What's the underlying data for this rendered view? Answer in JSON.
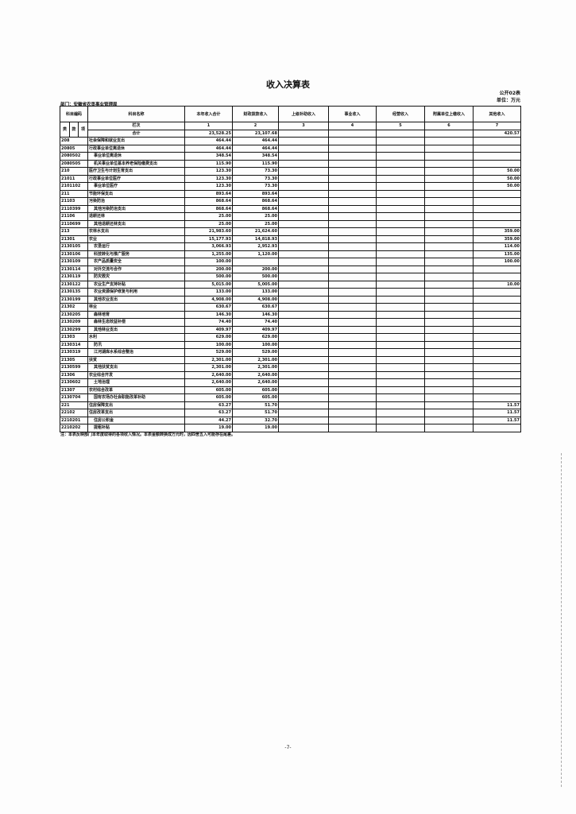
{
  "title": "收入决算表",
  "form_no": "公开02表",
  "unit": "单位：万元",
  "department": "部门：安徽省农垦事业管理局",
  "headers": {
    "code": "科目编码",
    "name": "科目名称",
    "cols": [
      "本年收入合计",
      "财政拨款收入",
      "上级补助收入",
      "事业收入",
      "经营收入",
      "附属单位上缴收入",
      "其他收入"
    ]
  },
  "sub_headers": {
    "lei": "类",
    "kuan": "款",
    "xiang": "项",
    "lanci": "栏次",
    "col_nums": [
      "1",
      "2",
      "3",
      "4",
      "5",
      "6",
      "7"
    ]
  },
  "total": {
    "label": "合计",
    "values": [
      "23,528.25",
      "23,107.68",
      "",
      "",
      "",
      "",
      "420.57"
    ]
  },
  "rows": [
    {
      "code": "208",
      "name": "社会保障和就业支出",
      "v": [
        "464.44",
        "464.44",
        "",
        "",
        "",
        "",
        ""
      ]
    },
    {
      "code": "20805",
      "name": "行政事业单位离退休",
      "v": [
        "464.44",
        "464.44",
        "",
        "",
        "",
        "",
        ""
      ]
    },
    {
      "code": "2080502",
      "name": "事业单位离退休",
      "v": [
        "348.54",
        "348.54",
        "",
        "",
        "",
        "",
        ""
      ]
    },
    {
      "code": "2080505",
      "name": "机关事业单位基本养老保险缴费支出",
      "v": [
        "115.90",
        "115.90",
        "",
        "",
        "",
        "",
        ""
      ]
    },
    {
      "code": "210",
      "name": "医疗卫生与计划生育支出",
      "v": [
        "123.30",
        "73.30",
        "",
        "",
        "",
        "",
        "50.00"
      ]
    },
    {
      "code": "21011",
      "name": "行政事业单位医疗",
      "v": [
        "123.30",
        "73.30",
        "",
        "",
        "",
        "",
        "50.00"
      ]
    },
    {
      "code": "2101102",
      "name": "事业单位医疗",
      "v": [
        "123.30",
        "73.30",
        "",
        "",
        "",
        "",
        "50.00"
      ]
    },
    {
      "code": "211",
      "name": "节能环保支出",
      "v": [
        "893.64",
        "893.64",
        "",
        "",
        "",
        "",
        ""
      ]
    },
    {
      "code": "21103",
      "name": "污染防治",
      "v": [
        "868.64",
        "868.64",
        "",
        "",
        "",
        "",
        ""
      ]
    },
    {
      "code": "2110399",
      "name": "其他污染防治支出",
      "v": [
        "868.64",
        "868.64",
        "",
        "",
        "",
        "",
        ""
      ]
    },
    {
      "code": "21106",
      "name": "退耕还林",
      "v": [
        "25.00",
        "25.00",
        "",
        "",
        "",
        "",
        ""
      ]
    },
    {
      "code": "2110699",
      "name": "其他退耕还林支出",
      "v": [
        "25.00",
        "25.00",
        "",
        "",
        "",
        "",
        ""
      ]
    },
    {
      "code": "213",
      "name": "农林水支出",
      "v": [
        "21,983.60",
        "21,624.60",
        "",
        "",
        "",
        "",
        "359.00"
      ]
    },
    {
      "code": "21301",
      "name": "农业",
      "v": [
        "15,177.93",
        "14,818.93",
        "",
        "",
        "",
        "",
        "359.00"
      ]
    },
    {
      "code": "2130105",
      "name": "农垦运行",
      "v": [
        "3,066.93",
        "2,952.93",
        "",
        "",
        "",
        "",
        "114.00"
      ]
    },
    {
      "code": "2130106",
      "name": "科技转化与推广服务",
      "v": [
        "1,255.00",
        "1,120.00",
        "",
        "",
        "",
        "",
        "135.00"
      ]
    },
    {
      "code": "2130109",
      "name": "农产品质量安全",
      "v": [
        "100.00",
        "",
        "",
        "",
        "",
        "",
        "100.00"
      ]
    },
    {
      "code": "2130114",
      "name": "对外交流与合作",
      "v": [
        "200.00",
        "200.00",
        "",
        "",
        "",
        "",
        ""
      ]
    },
    {
      "code": "2130119",
      "name": "防灾救灾",
      "v": [
        "500.00",
        "500.00",
        "",
        "",
        "",
        "",
        ""
      ]
    },
    {
      "code": "2130122",
      "name": "农业生产支持补贴",
      "v": [
        "5,015.00",
        "5,005.00",
        "",
        "",
        "",
        "",
        "10.00"
      ]
    },
    {
      "code": "2130135",
      "name": "农业资源保护修复与利用",
      "v": [
        "133.00",
        "133.00",
        "",
        "",
        "",
        "",
        ""
      ]
    },
    {
      "code": "2130199",
      "name": "其他农业支出",
      "v": [
        "4,908.00",
        "4,908.00",
        "",
        "",
        "",
        "",
        ""
      ]
    },
    {
      "code": "21302",
      "name": "林业",
      "v": [
        "630.67",
        "630.67",
        "",
        "",
        "",
        "",
        ""
      ]
    },
    {
      "code": "2130205",
      "name": "森林培育",
      "v": [
        "146.30",
        "146.30",
        "",
        "",
        "",
        "",
        ""
      ]
    },
    {
      "code": "2130209",
      "name": "森林生态效益补偿",
      "v": [
        "74.40",
        "74.40",
        "",
        "",
        "",
        "",
        ""
      ]
    },
    {
      "code": "2130299",
      "name": "其他林业支出",
      "v": [
        "409.97",
        "409.97",
        "",
        "",
        "",
        "",
        ""
      ]
    },
    {
      "code": "21303",
      "name": "水利",
      "v": [
        "629.00",
        "629.00",
        "",
        "",
        "",
        "",
        ""
      ]
    },
    {
      "code": "2130314",
      "name": "防汛",
      "v": [
        "100.00",
        "100.00",
        "",
        "",
        "",
        "",
        ""
      ]
    },
    {
      "code": "2130319",
      "name": "江河湖库水系综合整治",
      "v": [
        "529.00",
        "529.00",
        "",
        "",
        "",
        "",
        ""
      ]
    },
    {
      "code": "21305",
      "name": "扶贫",
      "v": [
        "2,301.00",
        "2,301.00",
        "",
        "",
        "",
        "",
        ""
      ]
    },
    {
      "code": "2130599",
      "name": "其他扶贫支出",
      "v": [
        "2,301.00",
        "2,301.00",
        "",
        "",
        "",
        "",
        ""
      ]
    },
    {
      "code": "21306",
      "name": "农业综合开发",
      "v": [
        "2,640.00",
        "2,640.00",
        "",
        "",
        "",
        "",
        ""
      ]
    },
    {
      "code": "2130602",
      "name": "土地治理",
      "v": [
        "2,640.00",
        "2,640.00",
        "",
        "",
        "",
        "",
        ""
      ]
    },
    {
      "code": "21307",
      "name": "农村综合改革",
      "v": [
        "605.00",
        "605.00",
        "",
        "",
        "",
        "",
        ""
      ]
    },
    {
      "code": "2130704",
      "name": "国有农场办社会职能改革补助",
      "v": [
        "605.00",
        "605.00",
        "",
        "",
        "",
        "",
        ""
      ]
    },
    {
      "code": "221",
      "name": "住房保障支出",
      "v": [
        "63.27",
        "51.70",
        "",
        "",
        "",
        "",
        "11.57"
      ]
    },
    {
      "code": "22102",
      "name": "住房改革支出",
      "v": [
        "63.27",
        "51.70",
        "",
        "",
        "",
        "",
        "11.57"
      ]
    },
    {
      "code": "2210201",
      "name": "住房公积金",
      "v": [
        "44.27",
        "32.70",
        "",
        "",
        "",
        "",
        "11.57"
      ]
    },
    {
      "code": "2210202",
      "name": "提租补贴",
      "v": [
        "19.00",
        "19.00",
        "",
        "",
        "",
        "",
        ""
      ]
    }
  ],
  "note": "注：本表反映部门本年度取得的各项收入情况。本表金额转换成万元时，因四舍五入可能存在尾差。",
  "page_number": "-7-"
}
